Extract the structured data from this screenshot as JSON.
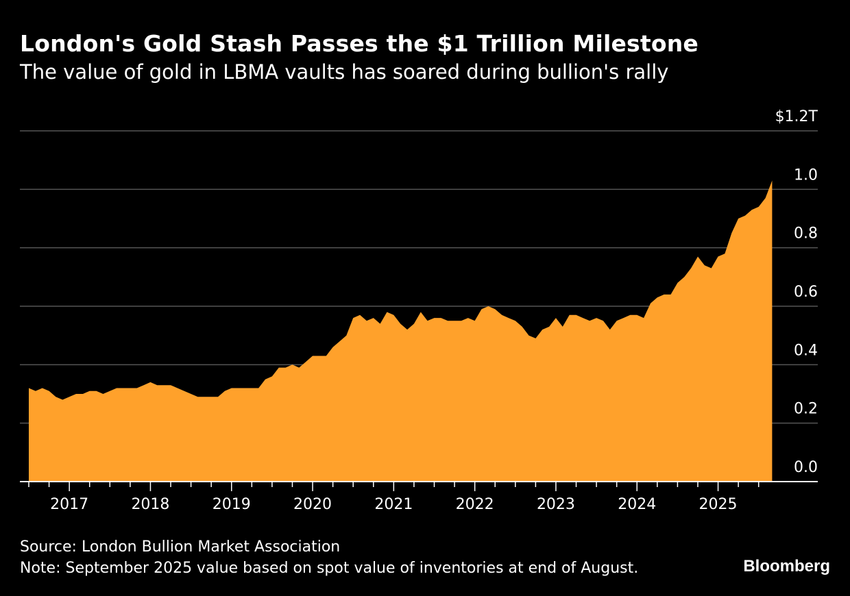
{
  "title": "London's Gold Stash Passes the $1 Trillion Milestone",
  "subtitle": "The value of gold in LBMA vaults has soared during bullion's rally",
  "source": "Source: London Bullion Market Association",
  "note": "Note: September 2025 value based on spot value of inventories at end of August.",
  "logo": "Bloomberg",
  "colors": {
    "fill": "#FFA12B",
    "background": "#000000",
    "grid": "#555555"
  },
  "chart_data": {
    "type": "area",
    "title": "London's Gold Stash Passes the $1 Trillion Milestone",
    "ylabel": "",
    "xlabel": "",
    "ylim": [
      0,
      1.2
    ],
    "y_unit": "trillion USD",
    "y_ticks": [
      {
        "value": 0.0,
        "label": "0.0"
      },
      {
        "value": 0.2,
        "label": "0.2"
      },
      {
        "value": 0.4,
        "label": "0.4"
      },
      {
        "value": 0.6,
        "label": "0.6"
      },
      {
        "value": 0.8,
        "label": "0.8"
      },
      {
        "value": 1.0,
        "label": "1.0"
      },
      {
        "value": 1.2,
        "label": "$1.2T"
      }
    ],
    "x_ticks": [
      "2017",
      "2018",
      "2019",
      "2020",
      "2021",
      "2022",
      "2023",
      "2024",
      "2025"
    ],
    "grid": true,
    "x_start": "2016-07",
    "x_end": "2025-09",
    "frequency": "monthly",
    "values": [
      0.32,
      0.31,
      0.32,
      0.31,
      0.29,
      0.28,
      0.29,
      0.3,
      0.3,
      0.31,
      0.31,
      0.3,
      0.31,
      0.32,
      0.32,
      0.32,
      0.32,
      0.33,
      0.34,
      0.33,
      0.33,
      0.33,
      0.32,
      0.31,
      0.3,
      0.29,
      0.29,
      0.29,
      0.29,
      0.31,
      0.32,
      0.32,
      0.32,
      0.32,
      0.32,
      0.35,
      0.36,
      0.39,
      0.39,
      0.4,
      0.39,
      0.41,
      0.43,
      0.43,
      0.43,
      0.46,
      0.48,
      0.5,
      0.56,
      0.57,
      0.55,
      0.56,
      0.54,
      0.58,
      0.57,
      0.54,
      0.52,
      0.54,
      0.58,
      0.55,
      0.56,
      0.56,
      0.55,
      0.55,
      0.55,
      0.56,
      0.55,
      0.59,
      0.6,
      0.59,
      0.57,
      0.56,
      0.55,
      0.53,
      0.5,
      0.49,
      0.52,
      0.53,
      0.56,
      0.53,
      0.57,
      0.57,
      0.56,
      0.55,
      0.56,
      0.55,
      0.52,
      0.55,
      0.56,
      0.57,
      0.57,
      0.56,
      0.61,
      0.63,
      0.64,
      0.64,
      0.68,
      0.7,
      0.73,
      0.77,
      0.74,
      0.73,
      0.77,
      0.78,
      0.85,
      0.9,
      0.91,
      0.93,
      0.94,
      0.97,
      1.03
    ]
  }
}
